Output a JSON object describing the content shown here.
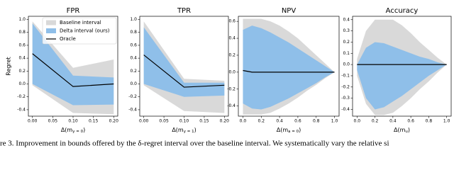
{
  "chart_data": [
    {
      "type": "area",
      "title": "FPR",
      "ylabel": "Regret",
      "xlabel": [
        "Δ(m",
        "y = 0",
        ")"
      ],
      "x": [
        0,
        0.1,
        0.2
      ],
      "xlim": [
        -0.01,
        0.21
      ],
      "ylim": [
        -0.5,
        1.05
      ],
      "xticks": [
        {
          "value": 0,
          "label": "0.00"
        },
        {
          "value": 0.05,
          "label": "0.05"
        },
        {
          "value": 0.1,
          "label": "0.10"
        },
        {
          "value": 0.15,
          "label": "0.15"
        },
        {
          "value": 0.2,
          "label": "0.20"
        }
      ],
      "yticks": [
        -0.4,
        -0.2,
        {
          "value": 0,
          "label": "0.0"
        },
        0.2,
        0.4,
        0.6,
        0.8,
        {
          "value": 1,
          "label": "1.0"
        }
      ],
      "legend": "upper right",
      "series": [
        {
          "name": "Baseline interval",
          "color": "#d9d9d9",
          "lower": [
            -0.02,
            -0.45,
            -0.47
          ],
          "upper": [
            0.97,
            0.25,
            0.38
          ]
        },
        {
          "name": "Delta interval (ours)",
          "color": "#8fbfe9",
          "lower": [
            0.0,
            -0.33,
            -0.32
          ],
          "upper": [
            0.94,
            0.13,
            0.1
          ]
        },
        {
          "name": "Oracle",
          "color": "#000000",
          "values": [
            0.47,
            -0.04,
            0.0
          ]
        }
      ]
    },
    {
      "type": "area",
      "title": "TPR",
      "xlabel": [
        "Δ(m",
        "y = 1",
        ")"
      ],
      "x": [
        0,
        0.1,
        0.2
      ],
      "xlim": [
        -0.01,
        0.21
      ],
      "ylim": [
        -0.5,
        1.05
      ],
      "xticks": [
        {
          "value": 0,
          "label": "0.00"
        },
        {
          "value": 0.05,
          "label": "0.05"
        },
        {
          "value": 0.1,
          "label": "0.10"
        },
        {
          "value": 0.15,
          "label": "0.15"
        },
        {
          "value": 0.2,
          "label": "0.20"
        }
      ],
      "yticks": [
        -0.4,
        -0.2,
        {
          "value": 0,
          "label": "0.0"
        },
        0.2,
        0.4,
        0.6,
        0.8,
        {
          "value": 1,
          "label": "1.0"
        }
      ],
      "series": [
        {
          "color": "#d9d9d9",
          "lower": [
            -0.02,
            -0.42,
            -0.45
          ],
          "upper": [
            0.97,
            0.08,
            0.05
          ]
        },
        {
          "color": "#8fbfe9",
          "lower": [
            0.0,
            -0.2,
            -0.18
          ],
          "upper": [
            0.88,
            0.02,
            0.02
          ]
        },
        {
          "color": "#000000",
          "values": [
            0.45,
            -0.05,
            -0.02
          ]
        }
      ]
    },
    {
      "type": "area",
      "title": "NPV",
      "xlabel": [
        "Δ(m",
        "a = 0",
        ")"
      ],
      "x": [
        0,
        0.1,
        0.2,
        0.3,
        0.4,
        0.5,
        0.6,
        0.7,
        0.8,
        0.9,
        1.0
      ],
      "xlim": [
        -0.05,
        1.05
      ],
      "ylim": [
        -0.52,
        0.66
      ],
      "xticks": [
        {
          "value": 0,
          "label": "0.0"
        },
        0.2,
        0.4,
        0.6,
        0.8,
        {
          "value": 1,
          "label": "1.0"
        }
      ],
      "yticks": [
        -0.4,
        -0.2,
        {
          "value": 0,
          "label": "0.0"
        },
        0.2,
        0.4,
        0.6
      ],
      "series": [
        {
          "color": "#d9d9d9",
          "lower": [
            -0.5,
            -0.5,
            -0.5,
            -0.48,
            -0.43,
            -0.37,
            -0.3,
            -0.22,
            -0.15,
            -0.07,
            0
          ],
          "upper": [
            0.63,
            0.63,
            0.63,
            0.6,
            0.55,
            0.48,
            0.4,
            0.3,
            0.2,
            0.1,
            0
          ]
        },
        {
          "color": "#8fbfe9",
          "lower": [
            -0.37,
            -0.43,
            -0.44,
            -0.41,
            -0.36,
            -0.31,
            -0.25,
            -0.19,
            -0.13,
            -0.06,
            0
          ],
          "upper": [
            0.5,
            0.55,
            0.52,
            0.47,
            0.41,
            0.35,
            0.28,
            0.21,
            0.14,
            0.07,
            0
          ]
        },
        {
          "color": "#000000",
          "values": [
            0.02,
            0,
            0,
            0,
            0,
            0,
            0,
            0,
            0,
            0,
            0
          ]
        }
      ]
    },
    {
      "type": "area",
      "title": "Accuracy",
      "xlabel": [
        "Δ(m",
        "u",
        ")"
      ],
      "x": [
        0,
        0.1,
        0.2,
        0.3,
        0.4,
        0.5,
        0.6,
        0.7,
        0.8,
        0.9,
        1.0
      ],
      "xlim": [
        -0.05,
        1.05
      ],
      "ylim": [
        -0.46,
        0.43
      ],
      "xticks": [
        {
          "value": 0,
          "label": "0.0"
        },
        0.2,
        0.4,
        0.6,
        0.8,
        {
          "value": 1,
          "label": "1.0"
        }
      ],
      "yticks": [
        -0.4,
        -0.3,
        -0.2,
        -0.1,
        {
          "value": 0,
          "label": "0.0"
        },
        0.1,
        0.2,
        0.3,
        0.4
      ],
      "series": [
        {
          "color": "#d9d9d9",
          "lower": [
            -0.1,
            -0.35,
            -0.45,
            -0.45,
            -0.43,
            -0.37,
            -0.3,
            -0.22,
            -0.15,
            -0.07,
            0
          ],
          "upper": [
            0.05,
            0.3,
            0.4,
            0.4,
            0.4,
            0.35,
            0.28,
            0.2,
            0.13,
            0.06,
            0
          ]
        },
        {
          "color": "#8fbfe9",
          "lower": [
            -0.05,
            -0.3,
            -0.4,
            -0.38,
            -0.33,
            -0.28,
            -0.22,
            -0.16,
            -0.1,
            -0.05,
            0
          ],
          "upper": [
            0,
            0.15,
            0.2,
            0.19,
            0.16,
            0.13,
            0.1,
            0.07,
            0.05,
            0.02,
            0
          ]
        },
        {
          "color": "#000000",
          "values": [
            0,
            0,
            0,
            0,
            0,
            0,
            0,
            0,
            0,
            0,
            0
          ]
        }
      ]
    }
  ],
  "caption": "re 3. Improvement in bounds offered by the δ-regret interval over the baseline interval. We systematically vary the relative si"
}
